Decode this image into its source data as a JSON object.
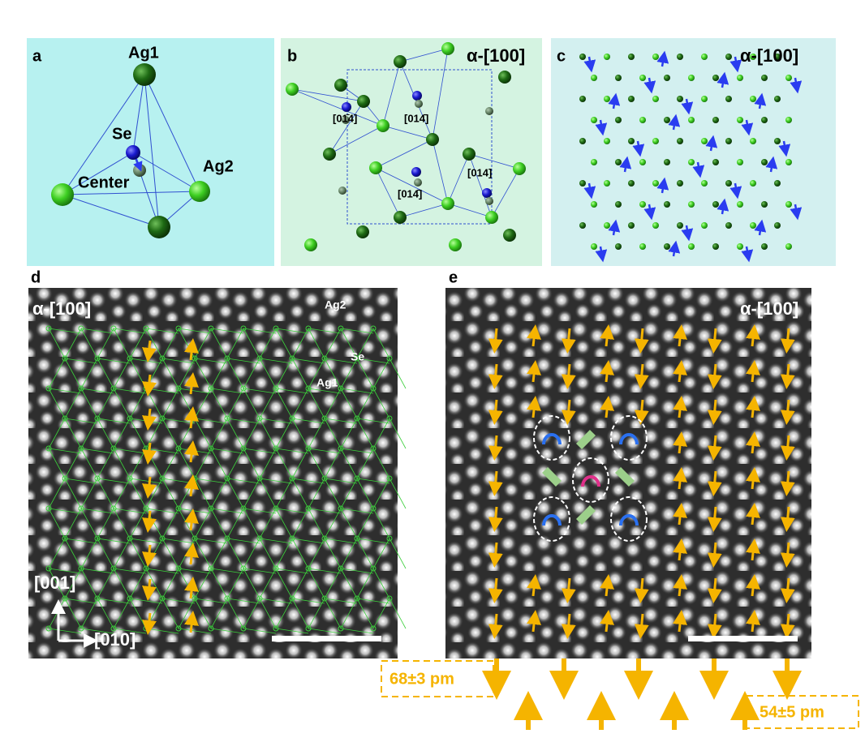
{
  "panels": {
    "a": {
      "label": "a",
      "ag1": "Ag1",
      "se": "Se",
      "ag2": "Ag2",
      "center": "Center"
    },
    "b": {
      "label": "b",
      "orientation": "α-[100]",
      "directions": [
        "[01̄4]",
        "[014̄]",
        "[014̄]",
        "[014]"
      ]
    },
    "c": {
      "label": "c",
      "orientation": "α-[100]"
    },
    "d": {
      "label": "d",
      "orientation": "α-[100]",
      "ag2": "Ag2",
      "se": "Se",
      "ag1": "Ag1",
      "axis_up": "[001]",
      "axis_right": "[010]"
    },
    "e": {
      "label": "e",
      "orientation": "α-[100]"
    }
  },
  "legend": {
    "down_shift": "68±3 pm",
    "up_shift": "54±5 pm"
  }
}
